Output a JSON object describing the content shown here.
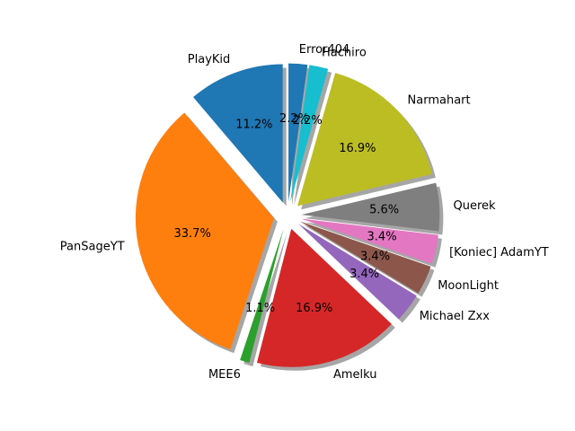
{
  "chart_data": {
    "type": "pie",
    "start_angle_deg": 90,
    "direction": "counterclockwise",
    "shadow": true,
    "slices": [
      {
        "label": "PlayKid",
        "value": 11.2,
        "pct_text": "11.2%",
        "color": "#1f77b4",
        "explode": 0.1
      },
      {
        "label": "PanSageYT",
        "value": 33.7,
        "pct_text": "33.7%",
        "color": "#ff7f0e",
        "explode": 0.1
      },
      {
        "label": "MEE6",
        "value": 1.1,
        "pct_text": "1.1%",
        "color": "#2ca02c",
        "explode": 0.1
      },
      {
        "label": "Amelku",
        "value": 16.9,
        "pct_text": "16.9%",
        "color": "#d62728",
        "explode": 0.1
      },
      {
        "label": "Michael Zxx",
        "value": 3.4,
        "pct_text": "3.4%",
        "color": "#9467bd",
        "explode": 0.1
      },
      {
        "label": "MoonLight",
        "value": 3.4,
        "pct_text": "3.4%",
        "color": "#8c564b",
        "explode": 0.1
      },
      {
        "label": "[Koniec] AdamYT",
        "value": 3.4,
        "pct_text": "3.4%",
        "color": "#e377c2",
        "explode": 0.1
      },
      {
        "label": "Querek",
        "value": 5.6,
        "pct_text": "5.6%",
        "color": "#7f7f7f",
        "explode": 0.1
      },
      {
        "label": "Narmahart",
        "value": 16.9,
        "pct_text": "16.9%",
        "color": "#bcbd22",
        "explode": 0.1
      },
      {
        "label": "Hachiro",
        "value": 2.2,
        "pct_text": "2.2%",
        "color": "#17becf",
        "explode": 0.1
      },
      {
        "label": "Error404",
        "value": 2.2,
        "pct_text": "2.2%",
        "color": "#1f77b4",
        "explode": 0.1
      }
    ]
  }
}
